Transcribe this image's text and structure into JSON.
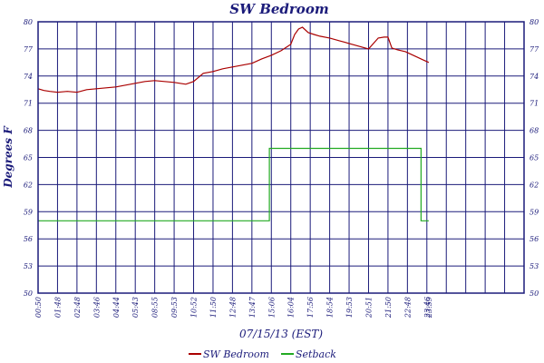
{
  "chart_data": {
    "type": "line",
    "title": "SW Bedroom",
    "xlabel": "07/15/13 (EST)",
    "ylabel": "Degrees F",
    "ylim": [
      50,
      80
    ],
    "yticks": [
      "50",
      "53",
      "56",
      "59",
      "62",
      "65",
      "68",
      "71",
      "74",
      "77",
      "80"
    ],
    "xlim": [
      0,
      25
    ],
    "xticks": [
      {
        "label": "00:50",
        "pos": 0
      },
      {
        "label": "01:48",
        "pos": 1
      },
      {
        "label": "02:48",
        "pos": 2
      },
      {
        "label": "03:46",
        "pos": 3
      },
      {
        "label": "04:44",
        "pos": 4
      },
      {
        "label": "05:43",
        "pos": 5
      },
      {
        "label": "08:55",
        "pos": 6
      },
      {
        "label": "09:53",
        "pos": 7
      },
      {
        "label": "10:52",
        "pos": 8
      },
      {
        "label": "11:50",
        "pos": 9
      },
      {
        "label": "12:48",
        "pos": 10
      },
      {
        "label": "13:47",
        "pos": 11
      },
      {
        "label": "15:06",
        "pos": 12
      },
      {
        "label": "16:04",
        "pos": 13
      },
      {
        "label": "17:56",
        "pos": 14
      },
      {
        "label": "18:54",
        "pos": 15
      },
      {
        "label": "19:53",
        "pos": 16
      },
      {
        "label": "20:51",
        "pos": 17
      },
      {
        "label": "21:50",
        "pos": 18
      },
      {
        "label": "22:48",
        "pos": 19
      },
      {
        "label": "23:46",
        "pos": 20
      },
      {
        "label": "23:59",
        "pos": 20.1
      }
    ],
    "grid": true,
    "legend_position": "bottom",
    "series": [
      {
        "name": "SW Bedroom",
        "color": "#aa0000",
        "x": [
          0,
          0.3,
          0.6,
          1.0,
          1.5,
          2.0,
          2.5,
          3.0,
          3.5,
          4.0,
          4.5,
          5.0,
          5.5,
          6.0,
          6.5,
          7.0,
          7.3,
          7.6,
          8.0,
          8.5,
          9.0,
          9.5,
          10.0,
          10.5,
          11.0,
          11.5,
          12.0,
          12.5,
          13.0,
          13.2,
          13.4,
          13.6,
          13.9,
          14.2,
          14.5,
          15.0,
          15.5,
          16.0,
          16.5,
          17.0,
          17.5,
          17.8,
          18.0,
          18.2,
          18.5,
          18.9,
          19.2,
          19.5,
          19.8,
          20.1
        ],
        "y": [
          72.6,
          72.4,
          72.3,
          72.2,
          72.3,
          72.2,
          72.5,
          72.6,
          72.7,
          72.8,
          73.0,
          73.2,
          73.4,
          73.5,
          73.4,
          73.3,
          73.2,
          73.1,
          73.4,
          74.3,
          74.5,
          74.8,
          75.0,
          75.2,
          75.4,
          75.9,
          76.3,
          76.8,
          77.5,
          78.6,
          79.2,
          79.4,
          78.8,
          78.6,
          78.4,
          78.2,
          77.9,
          77.6,
          77.3,
          77.0,
          78.2,
          78.3,
          78.3,
          77.1,
          76.9,
          76.7,
          76.4,
          76.1,
          75.8,
          75.5
        ]
      },
      {
        "name": "Setback",
        "color": "#22aa22",
        "x": [
          0,
          11.9,
          11.9,
          19.7,
          19.7,
          20.1
        ],
        "y": [
          58,
          58,
          66,
          66,
          58,
          58
        ]
      }
    ]
  }
}
